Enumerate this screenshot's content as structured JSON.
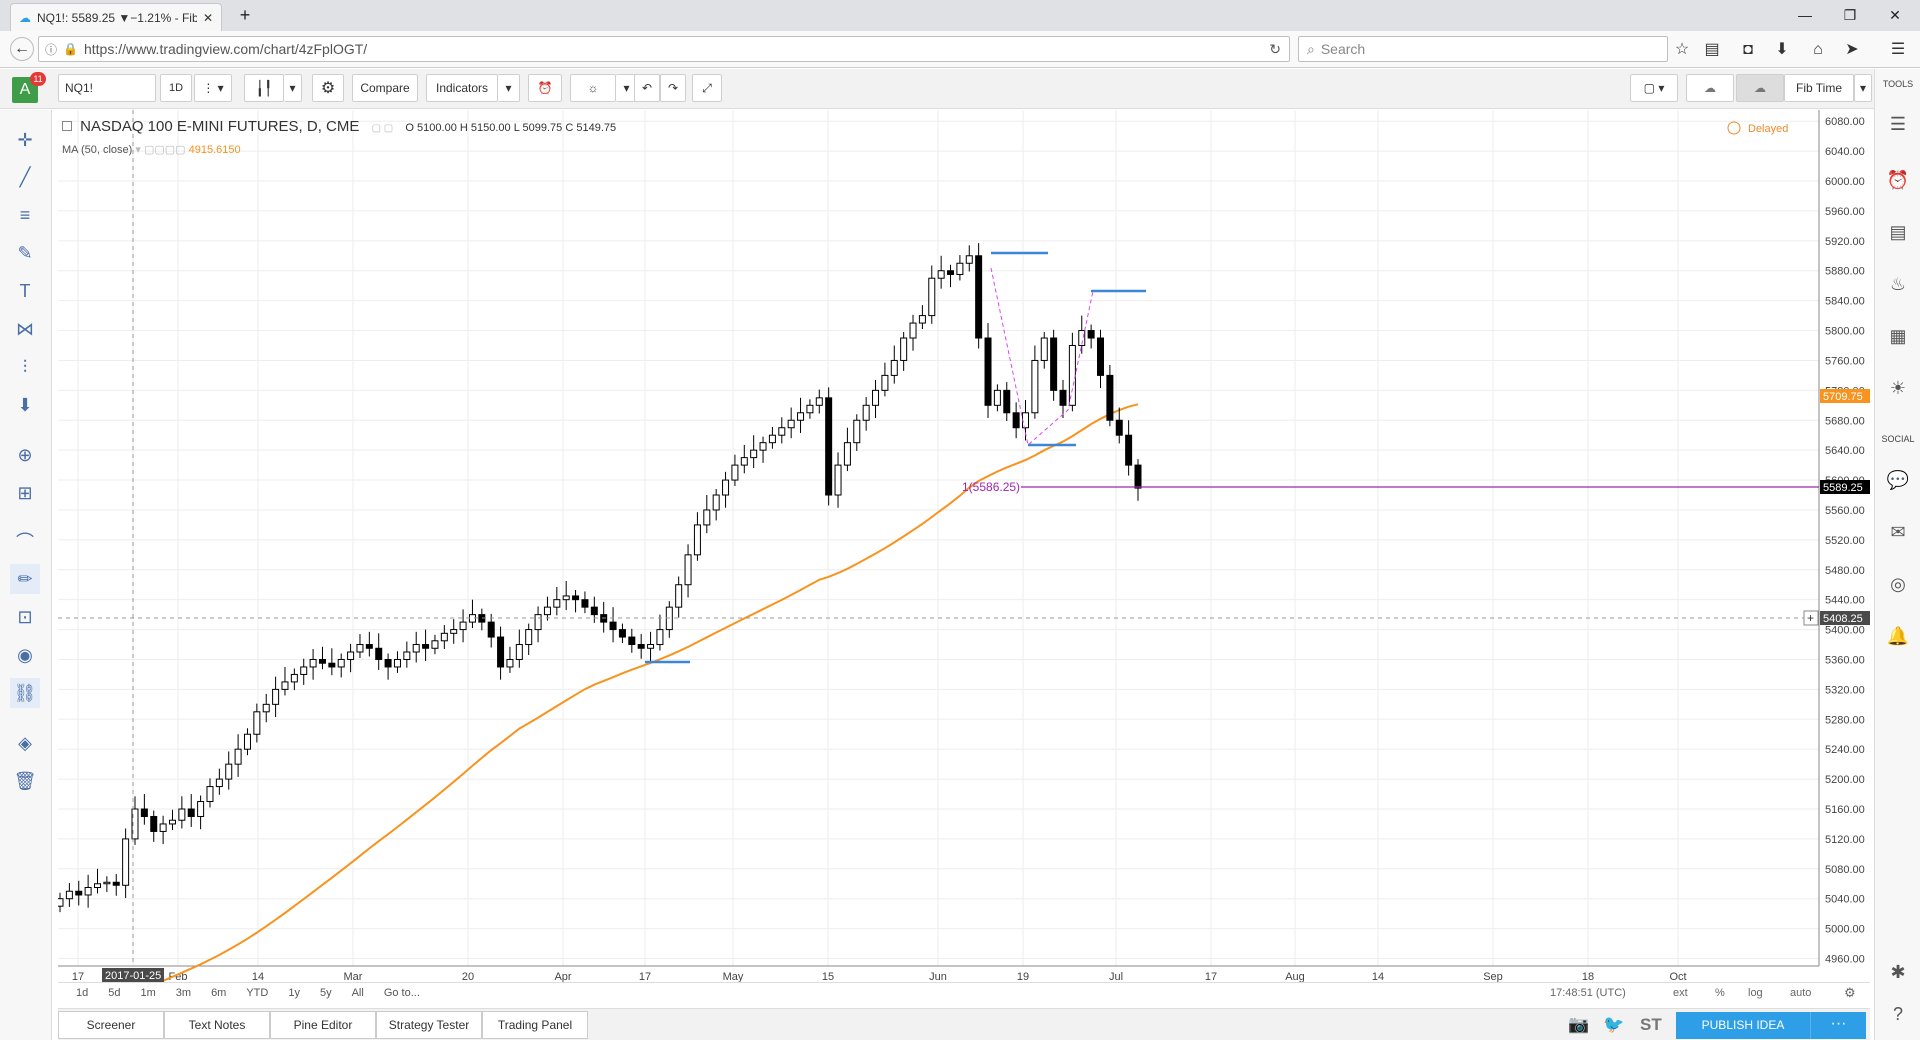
{
  "browser": {
    "tab_title": "NQ1!: 5589.25 ▼−1.21% - Fib",
    "url": "https://www.tradingview.com/chart/4zFplOGT/",
    "search_placeholder": "Search"
  },
  "toolbar": {
    "symbol": "NQ1!",
    "interval": "1D",
    "compare_label": "Compare",
    "indicators_label": "Indicators",
    "layout_name": "Fib Time",
    "avatar_letter": "A",
    "notification_count": "11"
  },
  "legend": {
    "title": "NASDAQ 100 E-MINI FUTURES, D, CME",
    "open_label": "O",
    "open": "5100.00",
    "high_label": "H",
    "high": "5150.00",
    "low_label": "L",
    "low": "5099.75",
    "close_label": "C",
    "close": "5149.75",
    "ma_label": "MA (50, close)",
    "ma_value": "4915.6150",
    "delayed": "Delayed"
  },
  "right_panel": {
    "tools_label": "TOOLS",
    "social_label": "SOCIAL"
  },
  "chart_data": {
    "type": "candlestick",
    "y_ticks": [
      "6080.00",
      "6040.00",
      "6000.00",
      "5960.00",
      "5920.00",
      "5880.00",
      "5840.00",
      "5800.00",
      "5760.00",
      "5720.00",
      "5680.00",
      "5640.00",
      "5600.00",
      "5560.00",
      "5520.00",
      "5480.00",
      "5440.00",
      "5400.00",
      "5360.00",
      "5320.00",
      "5280.00",
      "5240.00",
      "5200.00",
      "5160.00",
      "5120.00",
      "5080.00",
      "5040.00",
      "5000.00",
      "4960.00"
    ],
    "ylim": [
      4950,
      6095
    ],
    "x_ticks": [
      "17",
      "2017-01-25",
      "Feb",
      "14",
      "Mar",
      "20",
      "Apr",
      "17",
      "May",
      "15",
      "Jun",
      "19",
      "Jul",
      "17",
      "Aug",
      "14",
      "Sep",
      "18",
      "Oct"
    ],
    "price_last": "5589.25",
    "ma_last": "5709.75",
    "crosshair_price": "5408.25",
    "fib_label": "1(5586.25)",
    "candles_close": [
      5040,
      5050,
      5045,
      5055,
      5060,
      5062,
      5058,
      5120,
      5160,
      5150,
      5130,
      5140,
      5145,
      5160,
      5150,
      5170,
      5190,
      5200,
      5220,
      5240,
      5260,
      5290,
      5300,
      5320,
      5330,
      5340,
      5350,
      5360,
      5355,
      5350,
      5360,
      5370,
      5380,
      5375,
      5360,
      5350,
      5360,
      5370,
      5380,
      5375,
      5385,
      5395,
      5400,
      5410,
      5420,
      5410,
      5390,
      5350,
      5360,
      5380,
      5400,
      5420,
      5430,
      5440,
      5445,
      5440,
      5430,
      5420,
      5410,
      5400,
      5390,
      5380,
      5375,
      5380,
      5400,
      5430,
      5460,
      5500,
      5540,
      5560,
      5580,
      5600,
      5620,
      5630,
      5640,
      5650,
      5660,
      5670,
      5680,
      5690,
      5700,
      5710,
      5580,
      5620,
      5650,
      5680,
      5700,
      5720,
      5740,
      5760,
      5790,
      5810,
      5820,
      5870,
      5880,
      5875,
      5890,
      5900,
      5790,
      5700,
      5720,
      5690,
      5670,
      5690,
      5760,
      5790,
      5720,
      5700,
      5780,
      5800,
      5790,
      5740,
      5680,
      5660,
      5620,
      5589.25
    ]
  },
  "range_buttons": [
    "1d",
    "5d",
    "1m",
    "3m",
    "6m",
    "YTD",
    "1y",
    "5y",
    "All",
    "Go to..."
  ],
  "status": {
    "time": "17:48:51 (UTC)",
    "ext": "ext",
    "pct": "%",
    "log": "log",
    "auto": "auto"
  },
  "footer": {
    "tabs": [
      "Screener",
      "Text Notes",
      "Pine Editor",
      "Strategy Tester",
      "Trading Panel"
    ],
    "publish_label": "PUBLISH IDEA",
    "st_label": "ST"
  },
  "colors": {
    "ma_line": "#f7931e",
    "fib_line": "#9c27b0",
    "level_line": "#3d85d6",
    "publish": "#2e9fe6",
    "price_badge": "#000000",
    "ma_badge": "#f7931e"
  }
}
